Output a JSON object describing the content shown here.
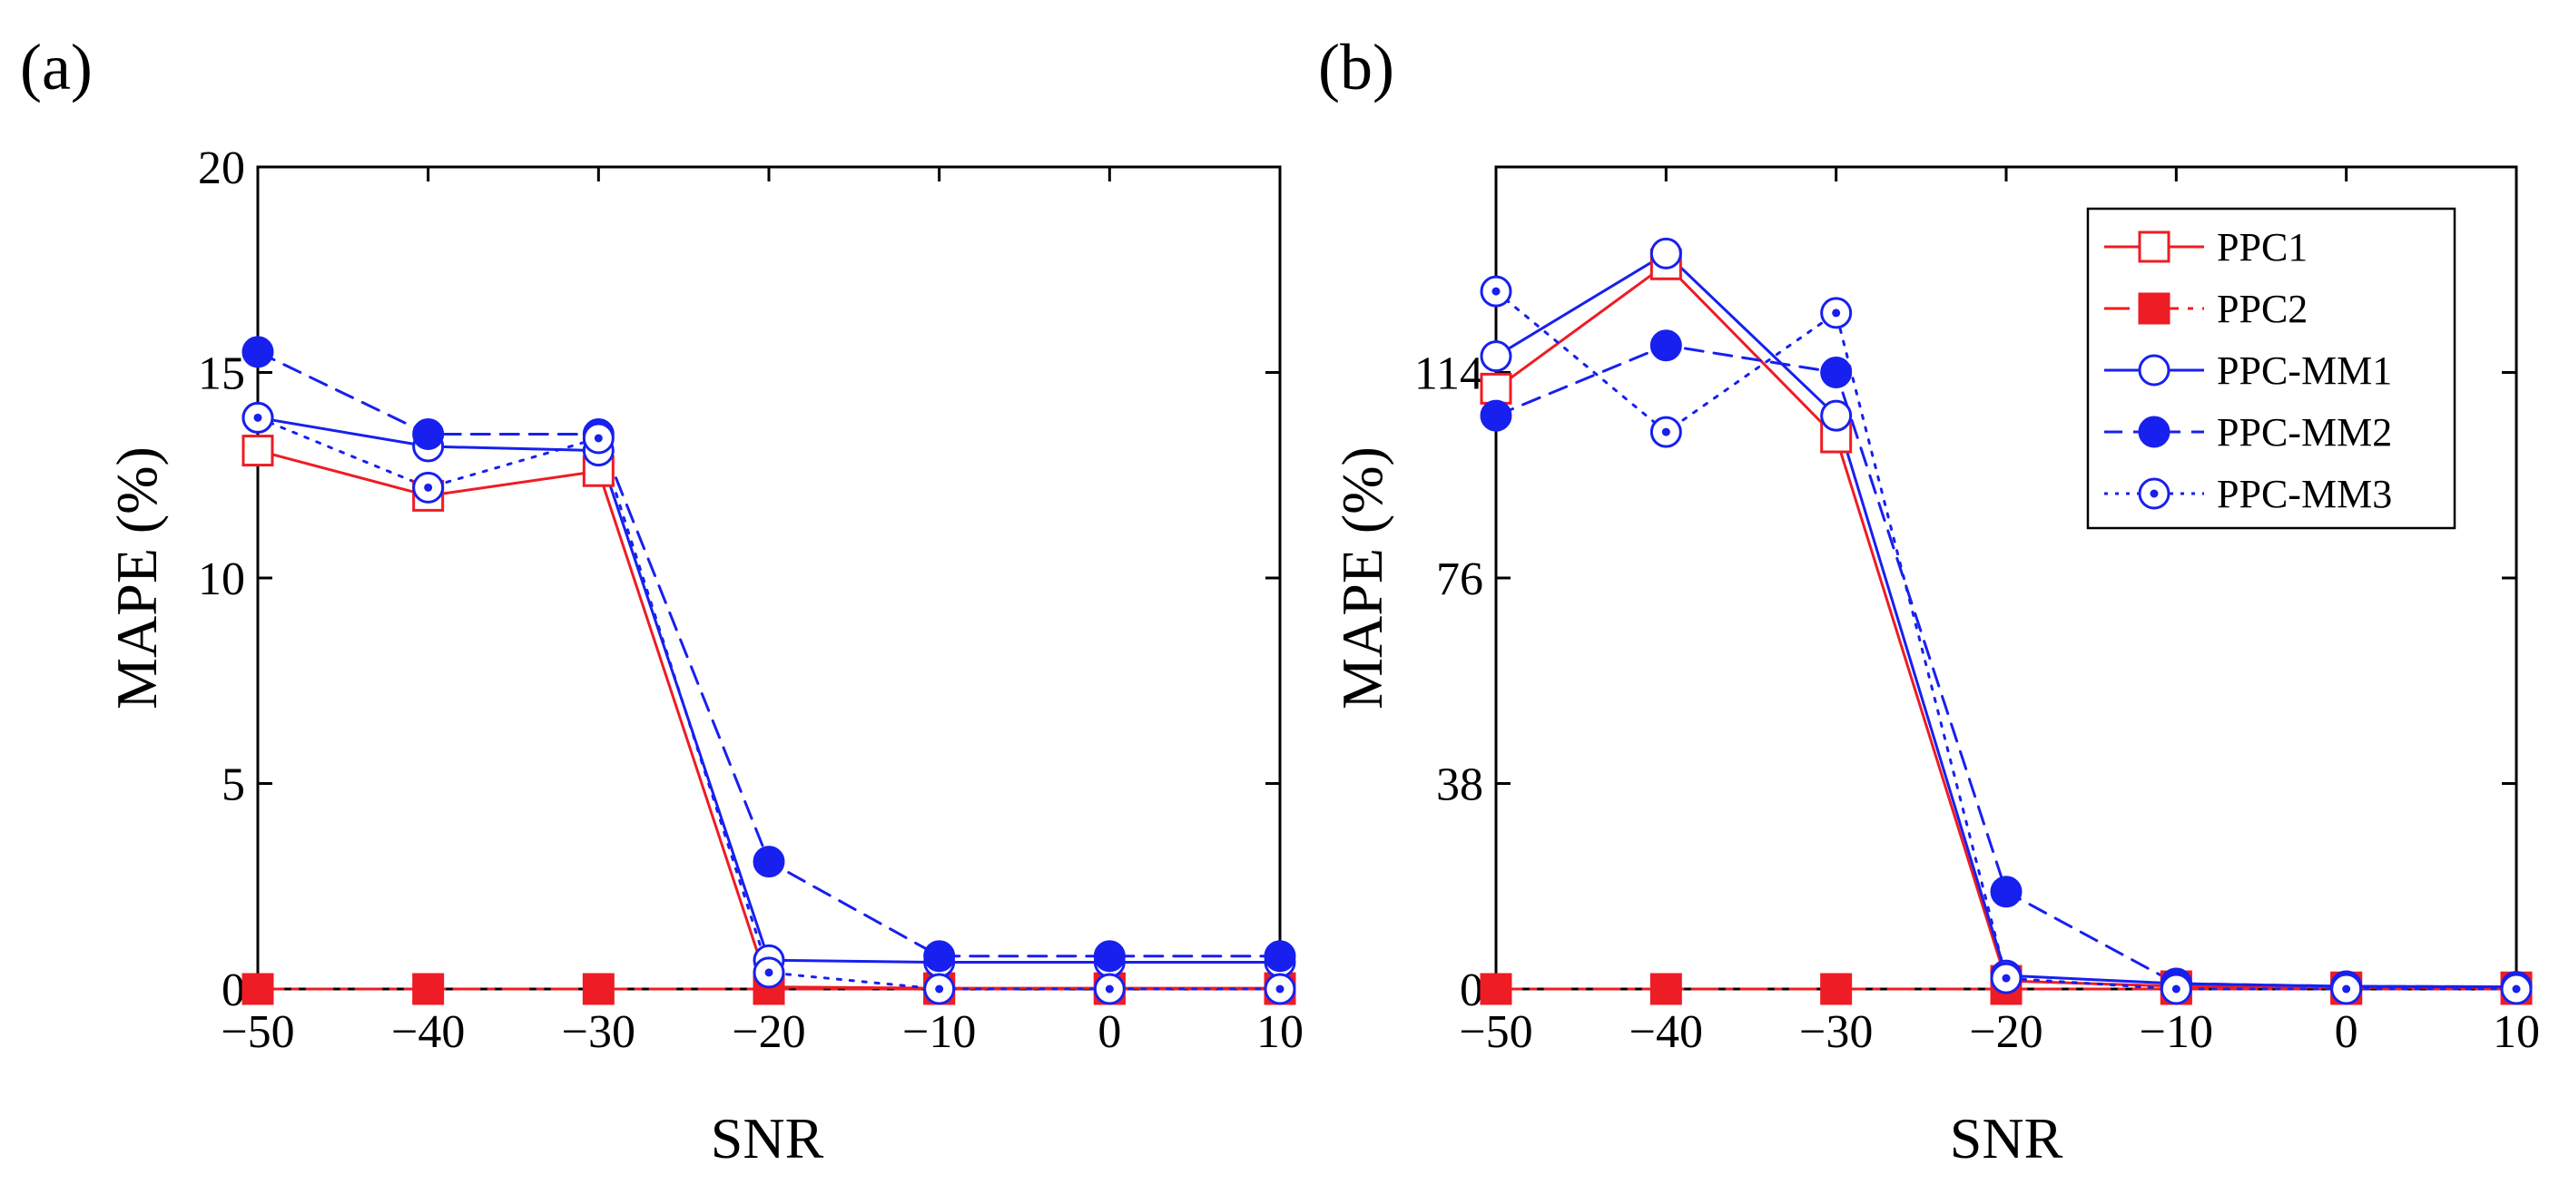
{
  "chart_data": [
    {
      "type": "line",
      "panel_label": "(a)",
      "title": "",
      "xlabel": "SNR",
      "ylabel": "MAPE (%)",
      "x": [
        -50,
        -40,
        -30,
        -20,
        -10,
        0,
        10
      ],
      "x_tick_labels": [
        "−50",
        "−40",
        "−30",
        "−20",
        "−10",
        "0",
        "10"
      ],
      "xlim": [
        -50,
        10
      ],
      "ylim": [
        0,
        20
      ],
      "y_ticks": [
        0,
        5,
        10,
        15,
        20
      ],
      "y_tick_labels": [
        "0",
        "5",
        "10",
        "15",
        "20"
      ],
      "grid": false,
      "legend": null,
      "series": [
        {
          "name": "PPC1",
          "values": [
            13.1,
            12.0,
            12.6,
            0.05,
            0.02,
            0.02,
            0.02
          ]
        },
        {
          "name": "PPC2",
          "values": [
            0,
            0,
            0,
            0,
            0,
            0,
            0
          ]
        },
        {
          "name": "PPC-MM1",
          "values": [
            13.9,
            13.2,
            13.1,
            0.7,
            0.65,
            0.65,
            0.65
          ]
        },
        {
          "name": "PPC-MM2",
          "values": [
            15.5,
            13.5,
            13.5,
            3.1,
            0.8,
            0.8,
            0.8
          ]
        },
        {
          "name": "PPC-MM3",
          "values": [
            13.9,
            12.2,
            13.4,
            0.4,
            0.0,
            0.0,
            0.0
          ]
        }
      ]
    },
    {
      "type": "line",
      "panel_label": "(b)",
      "title": "",
      "xlabel": "SNR",
      "ylabel": "MAPE (%)",
      "x": [
        -50,
        -40,
        -30,
        -20,
        -10,
        0,
        10
      ],
      "x_tick_labels": [
        "−50",
        "−40",
        "−30",
        "−20",
        "−10",
        "0",
        "10"
      ],
      "xlim": [
        -50,
        10
      ],
      "ylim": [
        0,
        152
      ],
      "y_ticks": [
        0,
        38,
        76,
        114
      ],
      "y_tick_labels": [
        "0",
        "38",
        "76",
        "114"
      ],
      "grid": false,
      "legend": {
        "position": "top-right",
        "entries": [
          "PPC1",
          "PPC2",
          "PPC-MM1",
          "PPC-MM2",
          "PPC-MM3"
        ]
      },
      "series": [
        {
          "name": "PPC1",
          "values": [
            111,
            134,
            102,
            1.5,
            0.5,
            0.3,
            0.3
          ]
        },
        {
          "name": "PPC2",
          "values": [
            0,
            0,
            0,
            0,
            0,
            0,
            0
          ]
        },
        {
          "name": "PPC-MM1",
          "values": [
            117,
            136,
            106,
            2.5,
            1.0,
            0.5,
            0.4
          ]
        },
        {
          "name": "PPC-MM2",
          "values": [
            106,
            119,
            114,
            18,
            1.0,
            0.5,
            0.4
          ]
        },
        {
          "name": "PPC-MM3",
          "values": [
            129,
            103,
            125,
            2.0,
            0.0,
            0.0,
            0.0
          ]
        }
      ]
    }
  ],
  "styles": {
    "PPC1": {
      "color": "#ee1c24",
      "dash": "none",
      "marker": "square-open"
    },
    "PPC2": {
      "color": "#ee1c24",
      "dash": "28 10 6 10",
      "marker": "square-filled"
    },
    "PPC-MM1": {
      "color": "#1720ee",
      "dash": "none",
      "marker": "circle-open"
    },
    "PPC-MM2": {
      "color": "#1720ee",
      "dash": "20 12",
      "marker": "circle-filled"
    },
    "PPC-MM3": {
      "color": "#1720ee",
      "dash": "4 10",
      "marker": "circle-dot"
    }
  }
}
